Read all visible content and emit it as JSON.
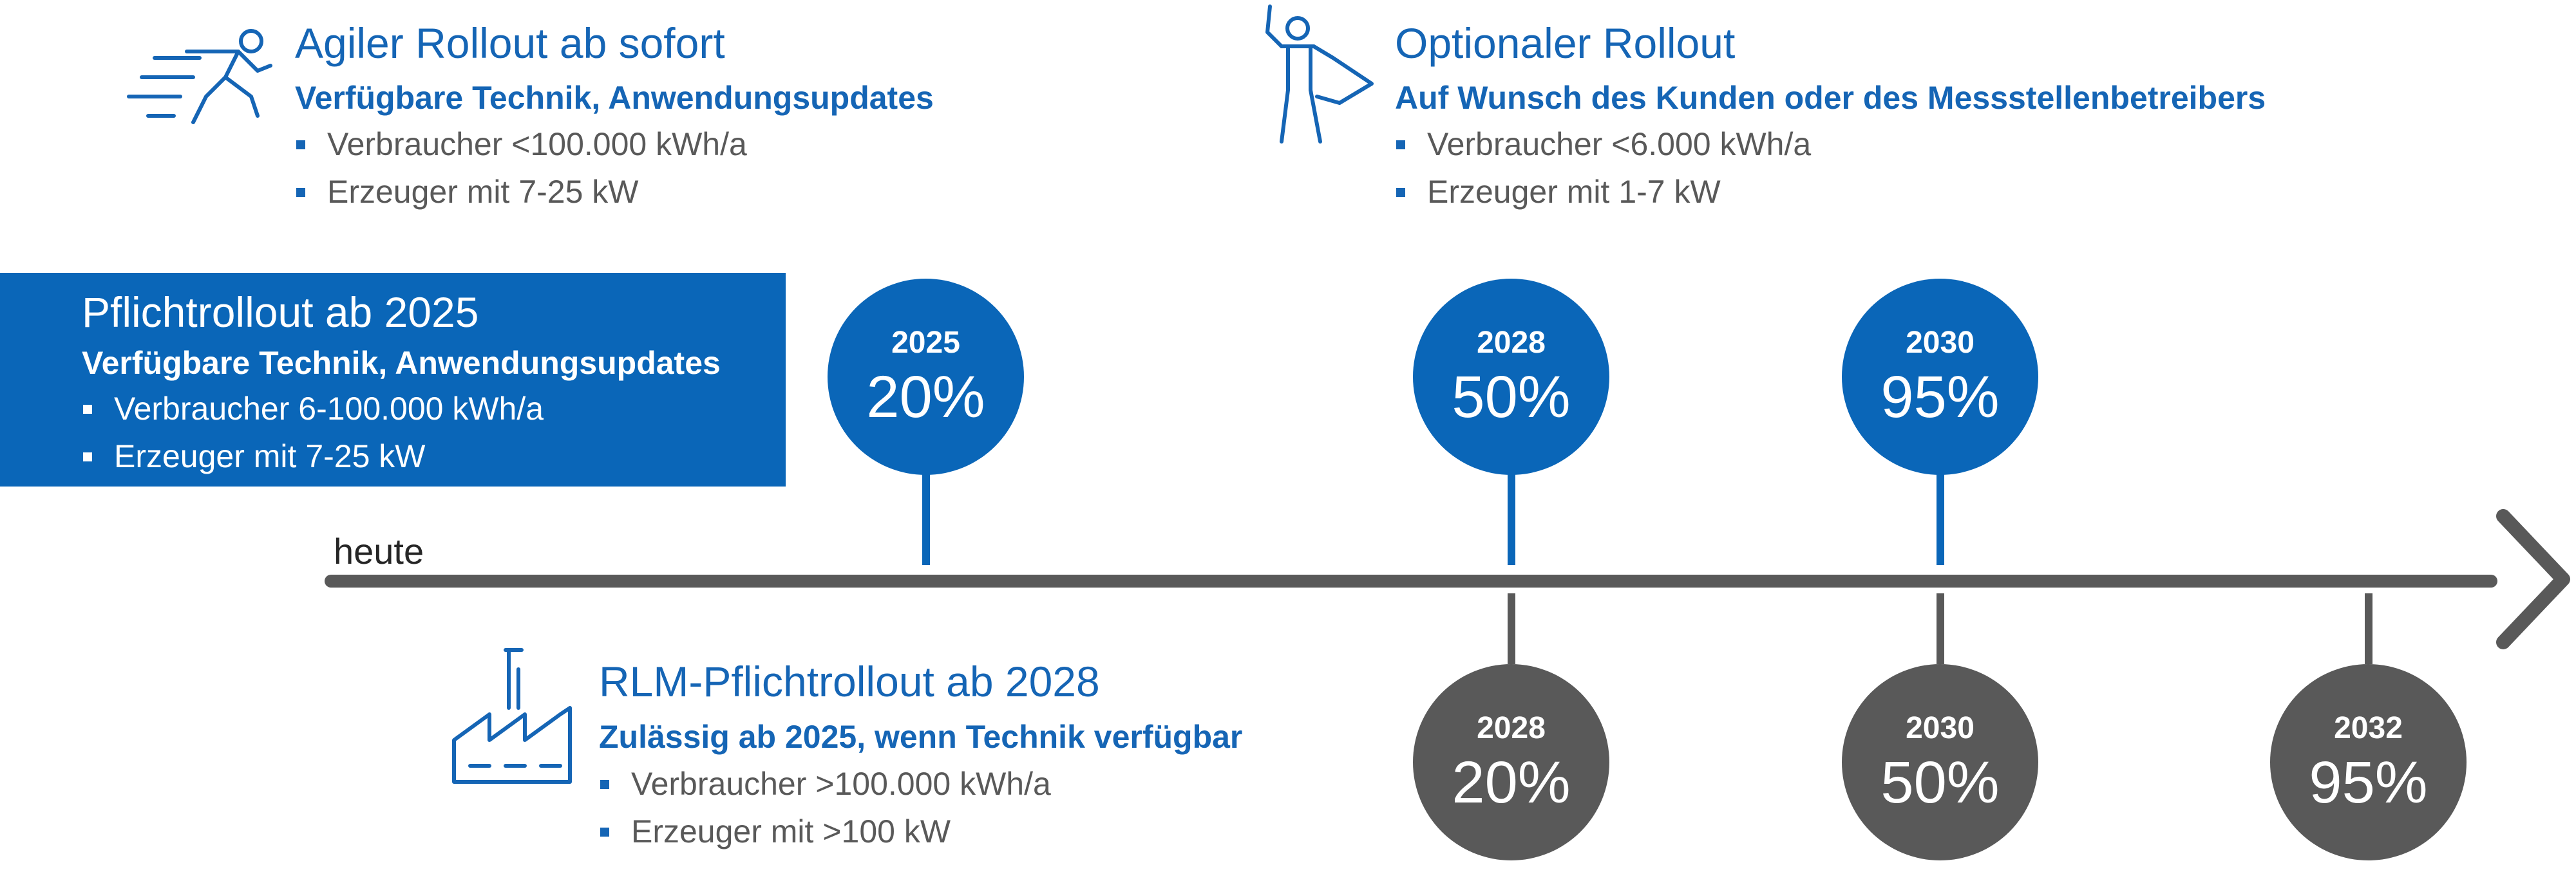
{
  "colors": {
    "blue": "#0a66b8",
    "gray": "#595959",
    "text_gray": "#595959"
  },
  "agile": {
    "icon": "running-person-icon",
    "title": "Agiler Rollout ab sofort",
    "subtitle": "Verfügbare Technik, Anwendungsupdates",
    "bullets": [
      "Verbraucher <100.000 kWh/a",
      "Erzeuger mit 7-25 kW"
    ]
  },
  "optional": {
    "icon": "superhero-person-icon",
    "title": "Optionaler Rollout",
    "subtitle": "Auf Wunsch des Kunden oder des Messstellenbetreibers",
    "bullets": [
      "Verbraucher <6.000 kWh/a",
      "Erzeuger mit 1-7 kW"
    ]
  },
  "mandatory": {
    "title": "Pflichtrollout ab 2025",
    "subtitle": "Verfügbare Technik, Anwendungsupdates",
    "bullets": [
      "Verbraucher 6-100.000 kWh/a",
      "Erzeuger mit 7-25 kW"
    ]
  },
  "rlm": {
    "icon": "factory-icon",
    "title": "RLM-Pflichtrollout ab 2028",
    "subtitle": "Zulässig ab 2025, wenn Technik verfügbar",
    "bullets": [
      "Verbraucher >100.000 kWh/a",
      "Erzeuger mit >100 kW"
    ]
  },
  "timeline": {
    "start_label": "heute",
    "upper_milestones": [
      {
        "year": "2025",
        "percent": "20%"
      },
      {
        "year": "2028",
        "percent": "50%"
      },
      {
        "year": "2030",
        "percent": "95%"
      }
    ],
    "lower_milestones": [
      {
        "year": "2028",
        "percent": "20%"
      },
      {
        "year": "2030",
        "percent": "50%"
      },
      {
        "year": "2032",
        "percent": "95%"
      }
    ]
  }
}
